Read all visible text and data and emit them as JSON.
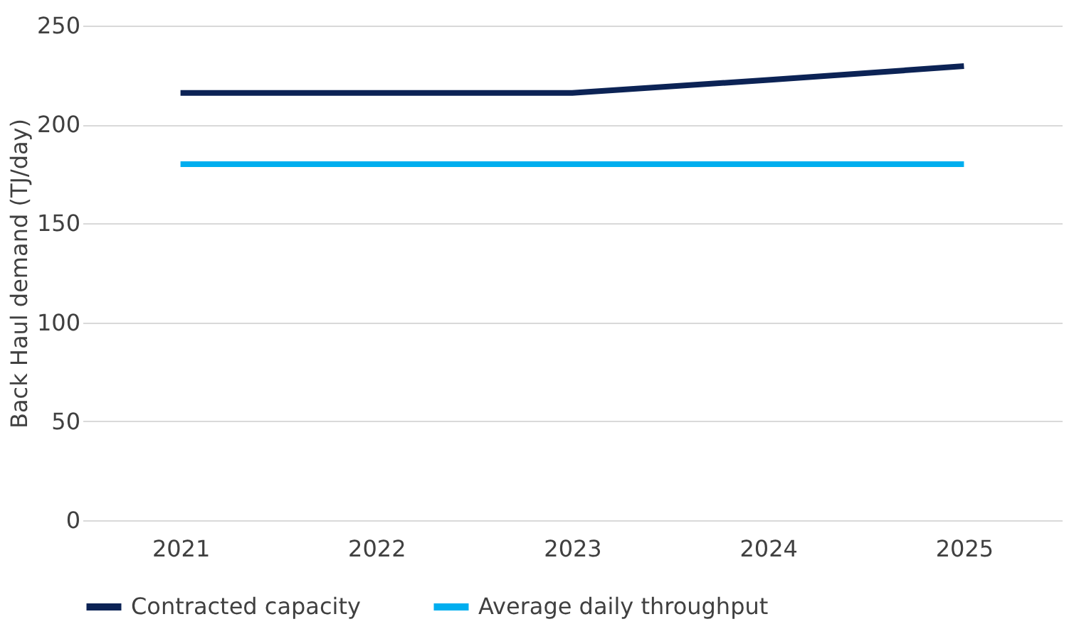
{
  "chart_data": {
    "type": "line",
    "ylabel": "Back Haul demand (TJ/day)",
    "categories": [
      "2021",
      "2022",
      "2023",
      "2024",
      "2025"
    ],
    "series": [
      {
        "name": "Contracted capacity",
        "color": "#0c2355",
        "values": [
          216,
          216,
          216,
          222.5,
          229.5
        ]
      },
      {
        "name": "Average daily throughput",
        "color": "#00aeef",
        "values": [
          180,
          180,
          180,
          180,
          180
        ]
      }
    ],
    "ylim": [
      0,
      250
    ],
    "yticks": [
      0,
      50,
      100,
      150,
      200,
      250
    ],
    "grid": "y",
    "legend": "bottom",
    "marker": "none",
    "line_style": "solid"
  }
}
